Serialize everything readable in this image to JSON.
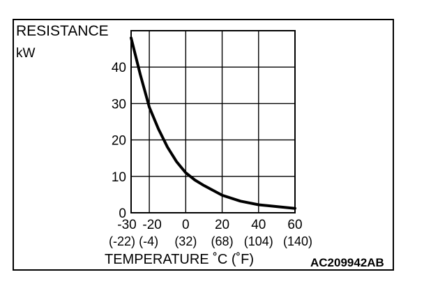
{
  "chart_data": {
    "type": "line",
    "ylabel": "RESISTANCE",
    "yunit": "kW",
    "xlabel": "TEMPERATURE ˚C (˚F)",
    "figure_code": "AC209942AB",
    "xlim": [
      -30,
      60
    ],
    "ylim": [
      0,
      50
    ],
    "grid": true,
    "x_ticks": [
      -30,
      -20,
      0,
      20,
      40,
      60
    ],
    "x_tick_labels": [
      "-30",
      "-20",
      "0",
      "20",
      "40",
      "60"
    ],
    "x_tick_labels_f": [
      "(-22)",
      "(-4)",
      "(32)",
      "(68)",
      "(104)",
      "(140)"
    ],
    "y_ticks": [
      0,
      10,
      20,
      30,
      40
    ],
    "y_tick_labels": [
      "0",
      "10",
      "20",
      "30",
      "40"
    ],
    "grid_x": [
      -20,
      0,
      20,
      40,
      60
    ],
    "grid_y": [
      10,
      20,
      30,
      40
    ],
    "series": [
      {
        "x": [
          -30,
          -25,
          -20,
          -15,
          -10,
          -5,
          0,
          5,
          10,
          20,
          30,
          40,
          50,
          60
        ],
        "values": [
          48,
          38,
          29,
          23,
          18,
          14,
          11,
          9,
          7.5,
          4.8,
          3.2,
          2.2,
          1.7,
          1.2
        ]
      }
    ]
  }
}
